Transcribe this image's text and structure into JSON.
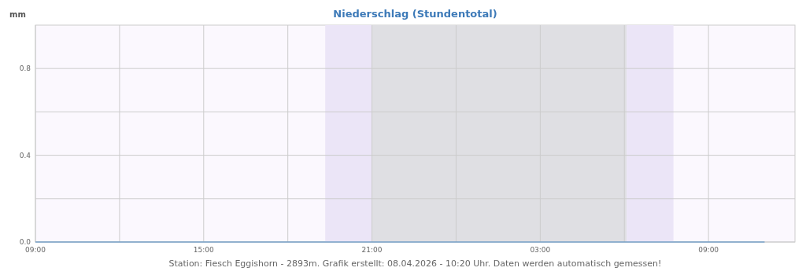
{
  "chart_data": {
    "type": "line",
    "title": "Niederschlag (Stundentotal)",
    "ylabel": "mm",
    "x": [
      "2026-04-07T09:00",
      "2026-04-07T10:00",
      "2026-04-07T11:00",
      "2026-04-07T12:00",
      "2026-04-07T13:00",
      "2026-04-07T14:00",
      "2026-04-07T15:00",
      "2026-04-07T16:00",
      "2026-04-07T17:00",
      "2026-04-07T18:00",
      "2026-04-07T19:00",
      "2026-04-07T20:00",
      "2026-04-07T21:00",
      "2026-04-07T22:00",
      "2026-04-07T23:00",
      "2026-04-08T00:00",
      "2026-04-08T01:00",
      "2026-04-08T02:00",
      "2026-04-08T03:00",
      "2026-04-08T04:00",
      "2026-04-08T05:00",
      "2026-04-08T06:00",
      "2026-04-08T07:00",
      "2026-04-08T08:00",
      "2026-04-08T09:00",
      "2026-04-08T10:00",
      "2026-04-08T11:00"
    ],
    "series": [
      {
        "color": "#4a8ac4",
        "values": [
          0,
          0,
          0,
          0,
          0,
          0,
          0,
          0,
          0,
          0,
          0,
          0,
          0,
          0,
          0,
          0,
          0,
          0,
          0,
          0,
          0,
          0,
          0,
          0,
          0,
          0,
          0
        ]
      }
    ],
    "xlim": [
      "2026-04-07T09:00",
      "2026-04-08T12:05"
    ],
    "xticks": [
      {
        "value": "2026-04-07T09:00",
        "label": "09:00"
      },
      {
        "value": "2026-04-07T12:00",
        "label": null
      },
      {
        "value": "2026-04-07T15:00",
        "label": "15:00"
      },
      {
        "value": "2026-04-07T18:00",
        "label": null
      },
      {
        "value": "2026-04-07T21:00",
        "label": "21:00"
      },
      {
        "value": "2026-04-08T00:00",
        "label": null
      },
      {
        "value": "2026-04-08T03:00",
        "label": "03:00"
      },
      {
        "value": "2026-04-08T06:00",
        "label": null
      },
      {
        "value": "2026-04-08T09:00",
        "label": "09:00"
      }
    ],
    "ylim": [
      0,
      1
    ],
    "yticks": [
      {
        "value": 0,
        "label": "0.0"
      },
      {
        "value": 0.2,
        "label": null
      },
      {
        "value": 0.4,
        "label": "0.4"
      },
      {
        "value": 0.6,
        "label": null
      },
      {
        "value": 0.8,
        "label": "0.8"
      }
    ],
    "grid": true,
    "marker": "none",
    "line_style": "solid",
    "bands": [
      {
        "axis": "x",
        "from": "2026-04-07T19:20",
        "to": "2026-04-07T21:00",
        "color": "#ebe5f7"
      },
      {
        "axis": "x",
        "from": "2026-04-07T21:00",
        "to": "2026-04-08T06:05",
        "color": "#dfdfe3"
      },
      {
        "axis": "x",
        "from": "2026-04-08T06:05",
        "to": "2026-04-08T07:45",
        "color": "#ebe5f7"
      }
    ],
    "annotations": [
      "Station: Fiesch Eggishorn - 2893m. Grafik erstellt: 08.04.2026 - 10:20 Uhr. Daten werden automatisch gemessen!"
    ]
  }
}
